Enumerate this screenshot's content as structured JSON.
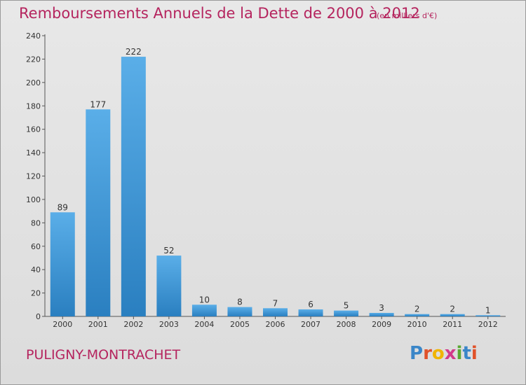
{
  "header": {
    "title": "Remboursements Annuels de la Dette de 2000 à 2012",
    "subtitle": "(en milliers d'€)"
  },
  "footer": {
    "commune": "PULIGNY-MONTRACHET",
    "logo_letters": [
      "P",
      "r",
      "o",
      "x",
      "i",
      "t",
      "i"
    ],
    "logo_colors": [
      "#3a86c8",
      "#e0522a",
      "#f0b400",
      "#d23a8a",
      "#5aa832",
      "#3a86c8",
      "#e0522a"
    ]
  },
  "chart_data": {
    "type": "bar",
    "categories": [
      "2000",
      "2001",
      "2002",
      "2003",
      "2004",
      "2005",
      "2006",
      "2007",
      "2008",
      "2009",
      "2010",
      "2011",
      "2012"
    ],
    "values": [
      89,
      177,
      222,
      52,
      10,
      8,
      7,
      6,
      5,
      3,
      2,
      2,
      1
    ],
    "ylim": [
      0,
      240
    ],
    "yticks": [
      0,
      20,
      40,
      60,
      80,
      100,
      120,
      140,
      160,
      180,
      200,
      220,
      240
    ],
    "grid": false,
    "bar_color_top": "#5aaee8",
    "bar_color_bottom": "#2a7fc0"
  }
}
